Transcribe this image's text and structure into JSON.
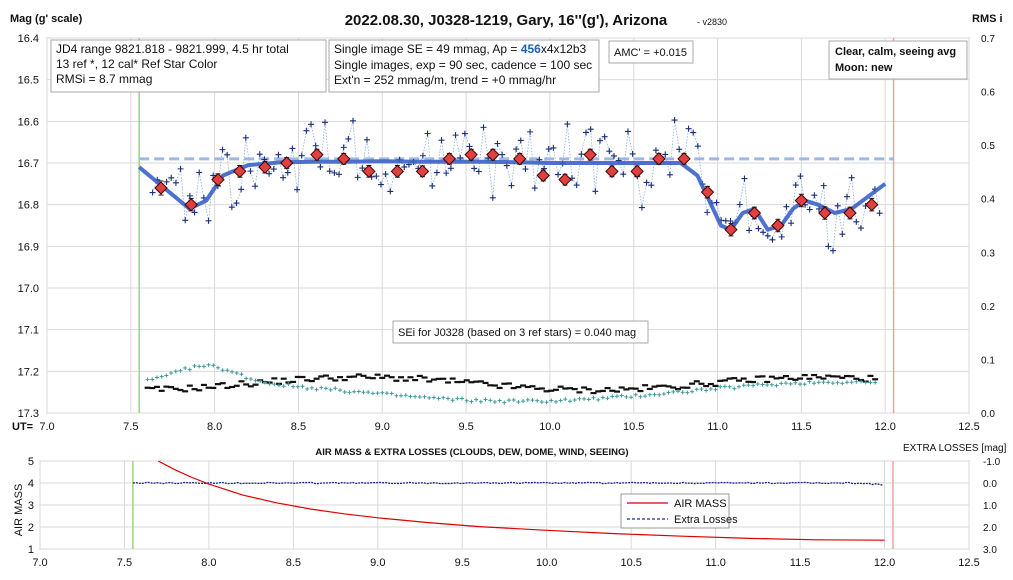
{
  "chart_data": [
    {
      "type": "scatter",
      "title": "2022.08.30, J0328-1219, Gary, 16''(g'), Arizona",
      "version": "- v2830",
      "ylabel": "Mag (g' scale)",
      "y2label": "RMS i",
      "xlabel": "UT=",
      "xlim": [
        7.0,
        12.5
      ],
      "ylim": [
        16.4,
        17.3
      ],
      "y_inverted": true,
      "y2lim": [
        0.0,
        0.7
      ],
      "x_ticks": [
        "7.0",
        "7.5",
        "8.0",
        "8.5",
        "9.0",
        "9.5",
        "10.0",
        "10.5",
        "11.0",
        "11.5",
        "12.0",
        "12.5"
      ],
      "y_ticks": [
        "16.4",
        "16.5",
        "16.6",
        "16.7",
        "16.8",
        "16.9",
        "17.0",
        "17.1",
        "17.2",
        "17.3"
      ],
      "y2_ticks": [
        "0.0",
        "0.1",
        "0.2",
        "0.3",
        "0.4",
        "0.5",
        "0.6",
        "0.7"
      ],
      "grid": true,
      "reference_level": 16.69,
      "start_marker_ut": 7.55,
      "end_marker_ut": 12.05,
      "annotations": {
        "box1": [
          "JD4 range 9821.818 - 9821.999, 4.5 hr total",
          "13 ref *, 12 cal*  Ref Star Color",
          "RMSi = 8.7 mmag"
        ],
        "box2_line1_prefix": "Single image SE = 49 mmag, Ap = ",
        "box2_line1_ap": "456",
        "box2_line1_suffix": "x4x12b3",
        "box2_line2": "Single images, exp = 90 sec, cadence = 100 sec",
        "box2_line3": "Ext'n = 252 mmag/m, trend = +0 mmag/hr",
        "amc": "AMC' = +0.015",
        "conditions": [
          "Clear, calm, seeing avg",
          "Moon: new"
        ],
        "sei": "SEi for J0328 (based on 3 ref stars) = 0.040 mag"
      },
      "series": [
        {
          "name": "binned",
          "x": [
            7.68,
            7.86,
            8.02,
            8.15,
            8.3,
            8.43,
            8.61,
            8.77,
            8.92,
            9.09,
            9.24,
            9.4,
            9.53,
            9.66,
            9.82,
            9.96,
            10.09,
            10.24,
            10.37,
            10.52,
            10.65,
            10.8,
            10.94,
            11.08,
            11.22,
            11.36,
            11.5,
            11.64,
            11.79,
            11.92
          ],
          "y": [
            16.76,
            16.8,
            16.74,
            16.72,
            16.71,
            16.7,
            16.68,
            16.69,
            16.72,
            16.72,
            16.72,
            16.69,
            16.68,
            16.68,
            16.69,
            16.73,
            16.74,
            16.68,
            16.72,
            16.72,
            16.69,
            16.69,
            16.77,
            16.86,
            16.82,
            16.85,
            16.79,
            16.82,
            16.82,
            16.8
          ],
          "err": [
            0.017,
            0.015,
            0.014,
            0.014,
            0.014,
            0.013,
            0.013,
            0.013,
            0.014,
            0.014,
            0.013,
            0.013,
            0.013,
            0.013,
            0.013,
            0.013,
            0.013,
            0.013,
            0.013,
            0.013,
            0.013,
            0.013,
            0.014,
            0.015,
            0.014,
            0.015,
            0.015,
            0.015,
            0.014,
            0.015
          ]
        },
        {
          "name": "smooth",
          "x": [
            7.55,
            7.7,
            7.85,
            7.95,
            8.05,
            8.2,
            8.4,
            8.6,
            8.8,
            9.0,
            9.2,
            9.4,
            9.6,
            9.8,
            10.0,
            10.2,
            10.4,
            10.6,
            10.78,
            10.88,
            10.95,
            11.02,
            11.08,
            11.15,
            11.22,
            11.3,
            11.38,
            11.45,
            11.52,
            11.6,
            11.7,
            11.8,
            11.9,
            12.0
          ],
          "y": [
            16.71,
            16.76,
            16.81,
            16.79,
            16.73,
            16.705,
            16.698,
            16.697,
            16.697,
            16.696,
            16.697,
            16.697,
            16.697,
            16.698,
            16.7,
            16.7,
            16.7,
            16.7,
            16.7,
            16.73,
            16.79,
            16.85,
            16.86,
            16.82,
            16.81,
            16.86,
            16.85,
            16.81,
            16.79,
            16.8,
            16.82,
            16.81,
            16.78,
            16.75
          ]
        }
      ]
    },
    {
      "type": "line",
      "title": "AIR MASS & EXTRA LOSSES (CLOUDS, DEW, DOME, WIND, SEEING)",
      "ylabel": "AIR MASS",
      "y2label": "EXTRA LOSSES [mag]",
      "xlim": [
        7.0,
        12.5
      ],
      "ylim": [
        1,
        5
      ],
      "y2lim": [
        -1.0,
        3.0
      ],
      "y2_inverted": true,
      "x_ticks": [
        "7.0",
        "7.5",
        "8.0",
        "8.5",
        "9.0",
        "9.5",
        "10.0",
        "10.5",
        "11.0",
        "11.5",
        "12.0",
        "12.5"
      ],
      "y_ticks": [
        "1",
        "2",
        "3",
        "4",
        "5"
      ],
      "y2_ticks": [
        "-1.0",
        "0.0",
        "1.0",
        "2.0",
        "3.0"
      ],
      "legend": [
        "AIR MASS",
        "Extra Losses"
      ],
      "legend_position": "lower-right",
      "series": [
        {
          "name": "AIR MASS",
          "x": [
            7.7,
            7.8,
            7.9,
            8.0,
            8.2,
            8.4,
            8.6,
            8.8,
            9.0,
            9.3,
            9.6,
            10.0,
            10.4,
            10.8,
            11.2,
            11.6,
            12.0
          ],
          "y": [
            5.0,
            4.6,
            4.25,
            3.95,
            3.45,
            3.1,
            2.82,
            2.6,
            2.42,
            2.2,
            2.02,
            1.85,
            1.7,
            1.58,
            1.48,
            1.42,
            1.4
          ]
        },
        {
          "name": "Extra Losses",
          "x": [
            7.55,
            8.0,
            9.0,
            10.0,
            11.0,
            11.8,
            12.0
          ],
          "y": [
            0.0,
            0.0,
            0.0,
            0.0,
            0.0,
            0.0,
            0.08
          ]
        }
      ],
      "colors": {
        "air_mass": "#dd0000",
        "extra_losses": "#1a2a8a"
      }
    }
  ]
}
